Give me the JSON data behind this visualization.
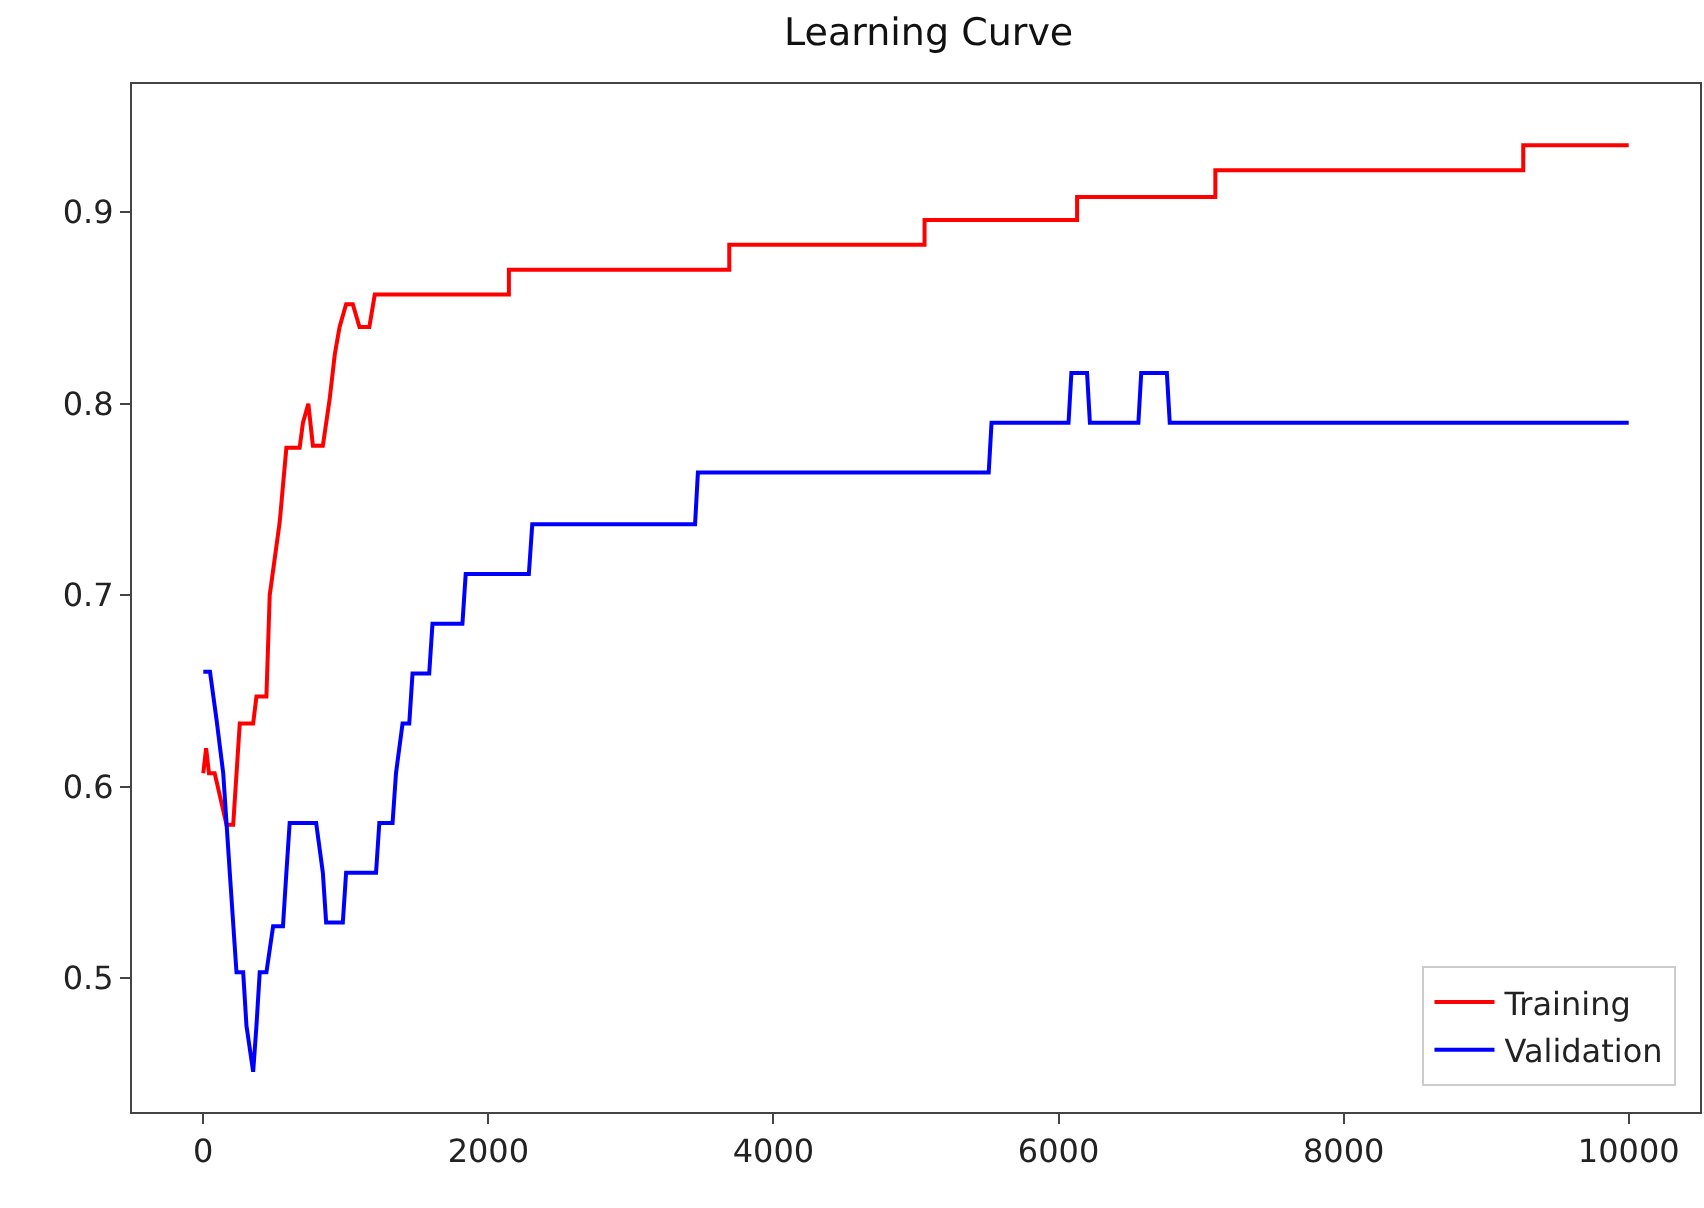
{
  "chart_data": {
    "type": "line",
    "title": "Learning Curve",
    "xlim": [
      -500,
      10500
    ],
    "ylim": [
      0.43,
      0.967
    ],
    "xticks": [
      0,
      2000,
      4000,
      6000,
      8000,
      10000
    ],
    "yticks": [
      0.5,
      0.6,
      0.7,
      0.8,
      0.9
    ],
    "legend": "bottom right",
    "marker": "none",
    "line_style": "solid",
    "series": [
      {
        "name": "Training",
        "color": "#ff0000",
        "x": [
          0,
          20,
          40,
          80,
          163,
          210,
          256,
          350,
          373,
          443,
          466,
          536,
          583,
          676,
          699,
          737,
          769,
          839,
          886,
          923,
          956,
          1002,
          1049,
          1096,
          1165,
          1203,
          2144,
          2144,
          3690,
          3690,
          5060,
          5060,
          6130,
          6130,
          7100,
          7100,
          9260,
          9260,
          10000
        ],
        "values": [
          0.607,
          0.62,
          0.607,
          0.607,
          0.58,
          0.58,
          0.633,
          0.633,
          0.647,
          0.647,
          0.7,
          0.738,
          0.777,
          0.777,
          0.79,
          0.8,
          0.778,
          0.778,
          0.802,
          0.826,
          0.84,
          0.852,
          0.852,
          0.84,
          0.84,
          0.857,
          0.857,
          0.87,
          0.87,
          0.883,
          0.883,
          0.896,
          0.896,
          0.908,
          0.908,
          0.922,
          0.922,
          0.935,
          0.935
        ]
      },
      {
        "name": "Validation",
        "color": "#0000ff",
        "x": [
          0,
          47,
          93,
          140,
          186,
          233,
          280,
          303,
          350,
          373,
          396,
          443,
          490,
          559,
          583,
          606,
          792,
          839,
          862,
          979,
          1002,
          1212,
          1235,
          1328,
          1352,
          1398,
          1445,
          1468,
          1585,
          1608,
          1818,
          1841,
          2284,
          2308,
          3450,
          3470,
          5510,
          5530,
          6070,
          6090,
          6200,
          6220,
          6560,
          6580,
          6760,
          6780,
          10000
        ],
        "values": [
          0.66,
          0.66,
          0.635,
          0.607,
          0.555,
          0.503,
          0.503,
          0.475,
          0.451,
          0.475,
          0.503,
          0.503,
          0.527,
          0.527,
          0.555,
          0.581,
          0.581,
          0.555,
          0.529,
          0.529,
          0.555,
          0.555,
          0.581,
          0.581,
          0.607,
          0.633,
          0.633,
          0.659,
          0.659,
          0.685,
          0.685,
          0.711,
          0.711,
          0.737,
          0.737,
          0.764,
          0.764,
          0.79,
          0.79,
          0.816,
          0.816,
          0.79,
          0.79,
          0.816,
          0.816,
          0.79,
          0.79
        ]
      }
    ]
  }
}
